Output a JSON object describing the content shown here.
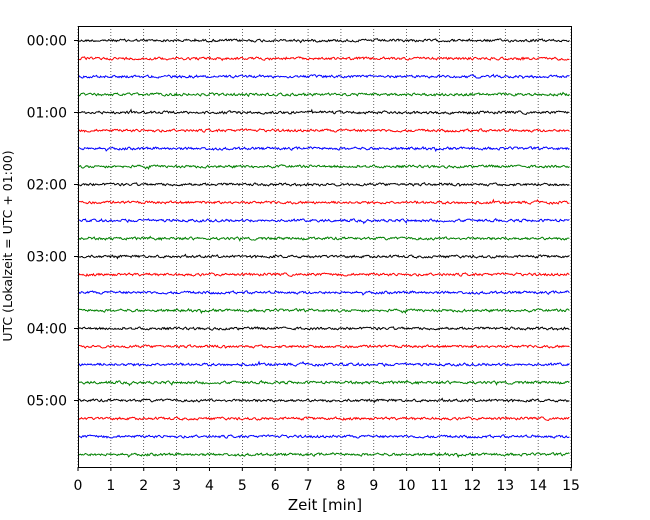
{
  "chart_data": {
    "type": "line",
    "xlabel": "Zeit  [min]",
    "ylabel": "UTC (Lokalzeit = UTC + 01:00)",
    "xlim": [
      0,
      15
    ],
    "x_ticks": [
      "0",
      "1",
      "2",
      "3",
      "4",
      "5",
      "6",
      "7",
      "8",
      "9",
      "10",
      "11",
      "12",
      "13",
      "14",
      "15"
    ],
    "y_tick_labels": [
      "00:00",
      "01:00",
      "02:00",
      "03:00",
      "04:00",
      "05:00"
    ],
    "grid": "vertical dotted",
    "trace_interval_minutes": 15,
    "trace_count": 24,
    "trace_colors": [
      "#000000",
      "#ff0000",
      "#0000ff",
      "#008000"
    ]
  }
}
